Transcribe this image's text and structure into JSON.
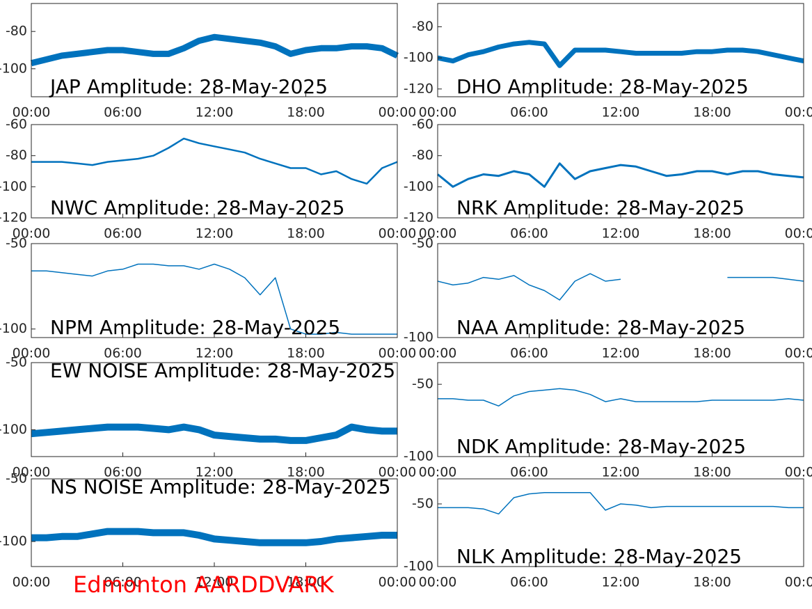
{
  "chart_data": [
    {
      "type": "line",
      "title": "JAP Amplitude: 28-May-2025",
      "color": "#0072bd",
      "x": [
        0,
        1,
        2,
        3,
        4,
        5,
        6,
        7,
        8,
        9,
        10,
        11,
        12,
        13,
        14,
        15,
        16,
        17,
        18,
        19,
        20,
        21,
        22,
        23,
        24
      ],
      "values": [
        -97,
        -95,
        -93,
        -92,
        -91,
        -90,
        -90,
        -91,
        -92,
        -92,
        -89,
        -85,
        -83,
        -84,
        -85,
        -86,
        -88,
        -92,
        -90,
        -89,
        -89,
        -88,
        -88,
        -89,
        -93
      ],
      "xlim": [
        0,
        24
      ],
      "xticks": [
        {
          "value": 0,
          "label": "00:00"
        },
        {
          "value": 6,
          "label": "06:00"
        },
        {
          "value": 12,
          "label": "12:00"
        },
        {
          "value": 18,
          "label": "18:00"
        },
        {
          "value": 24,
          "label": "00:00"
        }
      ],
      "ylim": [
        -115,
        -65
      ],
      "yticks": [
        -80,
        -100
      ]
    },
    {
      "type": "line",
      "title": "DHO Amplitude: 28-May-2025",
      "color": "#0072bd",
      "x": [
        0,
        1,
        2,
        3,
        4,
        5,
        6,
        7,
        8,
        9,
        10,
        11,
        12,
        13,
        14,
        15,
        16,
        17,
        18,
        19,
        20,
        21,
        22,
        23,
        24
      ],
      "values": [
        -100,
        -102,
        -98,
        -96,
        -93,
        -91,
        -90,
        -91,
        -105,
        -95,
        -95,
        -95,
        -96,
        -97,
        -97,
        -97,
        -97,
        -96,
        -96,
        -95,
        -95,
        -96,
        -98,
        -100,
        -102
      ],
      "xlim": [
        0,
        24
      ],
      "xticks": [
        {
          "value": 0,
          "label": "00:00"
        },
        {
          "value": 6,
          "label": "06:00"
        },
        {
          "value": 12,
          "label": "12:00"
        },
        {
          "value": 18,
          "label": "18:00"
        },
        {
          "value": 24,
          "label": "00:00"
        }
      ],
      "ylim": [
        -125,
        -65
      ],
      "yticks": [
        -80,
        -100,
        -120
      ]
    },
    {
      "type": "line",
      "title": "NWC Amplitude: 28-May-2025",
      "color": "#0072bd",
      "x": [
        0,
        1,
        2,
        3,
        4,
        5,
        6,
        7,
        8,
        9,
        10,
        11,
        12,
        13,
        14,
        15,
        16,
        17,
        18,
        19,
        20,
        21,
        22,
        23,
        24
      ],
      "values": [
        -84,
        -84,
        -84,
        -85,
        -86,
        -84,
        -83,
        -82,
        -80,
        -75,
        -69,
        -72,
        -74,
        -76,
        -78,
        -82,
        -85,
        -88,
        -88,
        -92,
        -90,
        -95,
        -98,
        -88,
        -84
      ],
      "xlim": [
        0,
        24
      ],
      "xticks": [
        {
          "value": 0,
          "label": "00:00"
        },
        {
          "value": 6,
          "label": "06:00"
        },
        {
          "value": 12,
          "label": "12:00"
        },
        {
          "value": 18,
          "label": "18:00"
        },
        {
          "value": 24,
          "label": "00:00"
        }
      ],
      "ylim": [
        -120,
        -60
      ],
      "yticks": [
        -60,
        -80,
        -100,
        -120
      ]
    },
    {
      "type": "line",
      "title": "NRK Amplitude: 28-May-2025",
      "color": "#0072bd",
      "x": [
        0,
        1,
        2,
        3,
        4,
        5,
        6,
        7,
        8,
        9,
        10,
        11,
        12,
        13,
        14,
        15,
        16,
        17,
        18,
        19,
        20,
        21,
        22,
        23,
        24
      ],
      "values": [
        -92,
        -100,
        -95,
        -92,
        -93,
        -90,
        -92,
        -100,
        -85,
        -95,
        -90,
        -88,
        -86,
        -87,
        -90,
        -93,
        -92,
        -90,
        -90,
        -92,
        -90,
        -90,
        -92,
        -93,
        -94
      ],
      "xlim": [
        0,
        24
      ],
      "xticks": [
        {
          "value": 0,
          "label": "00:00"
        },
        {
          "value": 6,
          "label": "06:00"
        },
        {
          "value": 12,
          "label": "12:00"
        },
        {
          "value": 18,
          "label": "18:00"
        },
        {
          "value": 24,
          "label": "00:00"
        }
      ],
      "ylim": [
        -120,
        -60
      ],
      "yticks": [
        -60,
        -80,
        -100,
        -120
      ]
    },
    {
      "type": "line",
      "title": "NPM Amplitude: 28-May-2025",
      "color": "#0072bd",
      "x": [
        0,
        1,
        2,
        3,
        4,
        5,
        6,
        7,
        8,
        9,
        10,
        11,
        12,
        13,
        14,
        15,
        16,
        17,
        18,
        19,
        20,
        21,
        22,
        23,
        24
      ],
      "values": [
        -66,
        -66,
        -67,
        -68,
        -69,
        -66,
        -65,
        -62,
        -62,
        -63,
        -63,
        -65,
        -62,
        -65,
        -70,
        -80,
        -70,
        -100,
        -103,
        -103,
        -102,
        -103,
        -103,
        -103,
        -103
      ],
      "xlim": [
        0,
        24
      ],
      "xticks": [
        {
          "value": 0,
          "label": "00:00"
        },
        {
          "value": 6,
          "label": "06:00"
        },
        {
          "value": 12,
          "label": "12:00"
        },
        {
          "value": 18,
          "label": "18:00"
        },
        {
          "value": 24,
          "label": "00:00"
        }
      ],
      "ylim": [
        -105,
        -50
      ],
      "yticks": [
        -50,
        -100
      ]
    },
    {
      "type": "line",
      "title": "NAA Amplitude: 28-May-2025",
      "color": "#0072bd",
      "x": [
        0,
        1,
        2,
        3,
        4,
        5,
        6,
        7,
        8,
        9,
        10,
        11,
        12,
        13,
        14,
        15,
        16,
        17,
        18,
        19,
        20,
        21,
        22,
        23,
        24
      ],
      "values": [
        -70,
        -72,
        -71,
        -68,
        -69,
        -67,
        -72,
        -75,
        -80,
        -70,
        -66,
        -70,
        -69,
        null,
        null,
        null,
        null,
        null,
        null,
        -68,
        -68,
        -68,
        -68,
        -69,
        -70
      ],
      "xlim": [
        0,
        24
      ],
      "xticks": [
        {
          "value": 0,
          "label": "00:00"
        },
        {
          "value": 6,
          "label": "06:00"
        },
        {
          "value": 12,
          "label": "12:00"
        },
        {
          "value": 18,
          "label": "18:00"
        },
        {
          "value": 24,
          "label": "00:00"
        }
      ],
      "ylim": [
        -100,
        -50
      ],
      "yticks": [
        -50,
        -100
      ]
    },
    {
      "type": "line",
      "title": "EW NOISE Amplitude: 28-May-2025",
      "color": "#0072bd",
      "x": [
        0,
        1,
        2,
        3,
        4,
        5,
        6,
        7,
        8,
        9,
        10,
        11,
        12,
        13,
        14,
        15,
        16,
        17,
        18,
        19,
        20,
        21,
        22,
        23,
        24
      ],
      "values": [
        -103,
        -102,
        -101,
        -100,
        -99,
        -98,
        -98,
        -98,
        -99,
        -100,
        -98,
        -100,
        -104,
        -105,
        -106,
        -107,
        -107,
        -108,
        -108,
        -106,
        -104,
        -98,
        -100,
        -101,
        -101
      ],
      "xlim": [
        0,
        24
      ],
      "xticks": [
        {
          "value": 0,
          "label": "00:00"
        },
        {
          "value": 6,
          "label": "06:00"
        },
        {
          "value": 12,
          "label": "12:00"
        },
        {
          "value": 18,
          "label": "18:00"
        },
        {
          "value": 24,
          "label": "00:00"
        }
      ],
      "ylim": [
        -120,
        -50
      ],
      "yticks": [
        -50,
        -100
      ]
    },
    {
      "type": "line",
      "title": "NDK Amplitude: 28-May-2025",
      "color": "#0072bd",
      "x": [
        0,
        1,
        2,
        3,
        4,
        5,
        6,
        7,
        8,
        9,
        10,
        11,
        12,
        13,
        14,
        15,
        16,
        17,
        18,
        19,
        20,
        21,
        22,
        23,
        24
      ],
      "values": [
        -60,
        -60,
        -61,
        -61,
        -65,
        -58,
        -55,
        -54,
        -53,
        -54,
        -57,
        -62,
        -60,
        -62,
        -62,
        -62,
        -62,
        -62,
        -61,
        -61,
        -61,
        -61,
        -61,
        -60,
        -61
      ],
      "xlim": [
        0,
        24
      ],
      "xticks": [
        {
          "value": 0,
          "label": "00:00"
        },
        {
          "value": 6,
          "label": "06:00"
        },
        {
          "value": 12,
          "label": "12:00"
        },
        {
          "value": 18,
          "label": "18:00"
        },
        {
          "value": 24,
          "label": "00:00"
        }
      ],
      "ylim": [
        -100,
        -35
      ],
      "yticks": [
        -50,
        -100
      ]
    },
    {
      "type": "line",
      "title": "NS NOISE Amplitude: 28-May-2025",
      "color": "#0072bd",
      "x": [
        0,
        1,
        2,
        3,
        4,
        5,
        6,
        7,
        8,
        9,
        10,
        11,
        12,
        13,
        14,
        15,
        16,
        17,
        18,
        19,
        20,
        21,
        22,
        23,
        24
      ],
      "values": [
        -97,
        -97,
        -96,
        -96,
        -94,
        -92,
        -92,
        -92,
        -93,
        -93,
        -93,
        -95,
        -98,
        -99,
        -100,
        -101,
        -101,
        -101,
        -101,
        -100,
        -98,
        -97,
        -96,
        -95,
        -95
      ],
      "xlim": [
        0,
        24
      ],
      "xticks": [
        {
          "value": 0,
          "label": "00:00"
        },
        {
          "value": 6,
          "label": "06:00"
        },
        {
          "value": 12,
          "label": "12:00"
        },
        {
          "value": 18,
          "label": "18:00"
        },
        {
          "value": 24,
          "label": "00:00"
        }
      ],
      "ylim": [
        -120,
        -50
      ],
      "yticks": [
        -50,
        -100
      ]
    },
    {
      "type": "line",
      "title": "NLK Amplitude: 28-May-2025",
      "color": "#0072bd",
      "x": [
        0,
        1,
        2,
        3,
        4,
        5,
        6,
        7,
        8,
        9,
        10,
        11,
        12,
        13,
        14,
        15,
        16,
        17,
        18,
        19,
        20,
        21,
        22,
        23,
        24
      ],
      "values": [
        -53,
        -53,
        -53,
        -54,
        -58,
        -45,
        -42,
        -41,
        -41,
        -41,
        -41,
        -55,
        -50,
        -51,
        -53,
        -52,
        -52,
        -52,
        -52,
        -52,
        -52,
        -52,
        -52,
        -53,
        -53
      ],
      "xlim": [
        0,
        24
      ],
      "xticks": [
        {
          "value": 0,
          "label": "00:00"
        },
        {
          "value": 6,
          "label": "06:00"
        },
        {
          "value": 12,
          "label": "12:00"
        },
        {
          "value": 18,
          "label": "18:00"
        },
        {
          "value": 24,
          "label": "00:00"
        }
      ],
      "ylim": [
        -100,
        -30
      ],
      "yticks": [
        -50,
        -100
      ]
    }
  ],
  "caption": "Edmonton AARDDVARK"
}
